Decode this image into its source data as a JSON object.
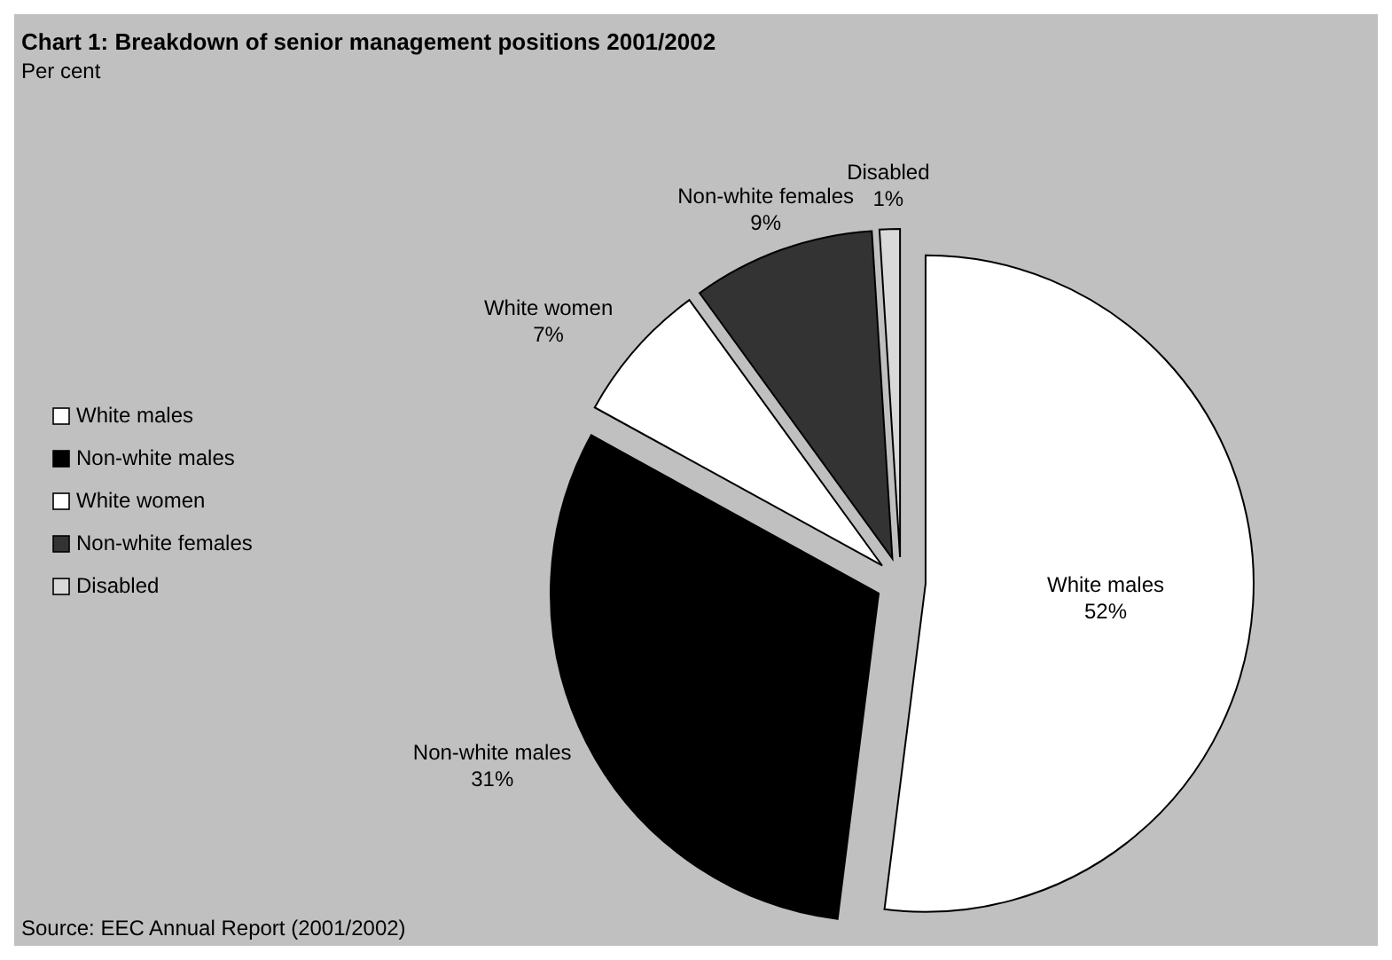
{
  "chart_data": {
    "type": "pie",
    "title": "Chart 1: Breakdown of senior management positions 2001/2002",
    "subtitle": "Per cent",
    "categories": [
      "White males",
      "Non-white males",
      "White women",
      "Non-white females",
      "Disabled"
    ],
    "values": [
      52,
      31,
      7,
      9,
      1
    ],
    "colors": [
      "#ffffff",
      "#000000",
      "#ffffff",
      "#333333",
      "#d9d9d9"
    ],
    "value_labels": [
      "52%",
      "31%",
      "7%",
      "9%",
      "1%"
    ],
    "legend": "left",
    "annotations": [
      "Source: EEC Annual Report (2001/2002)"
    ]
  }
}
